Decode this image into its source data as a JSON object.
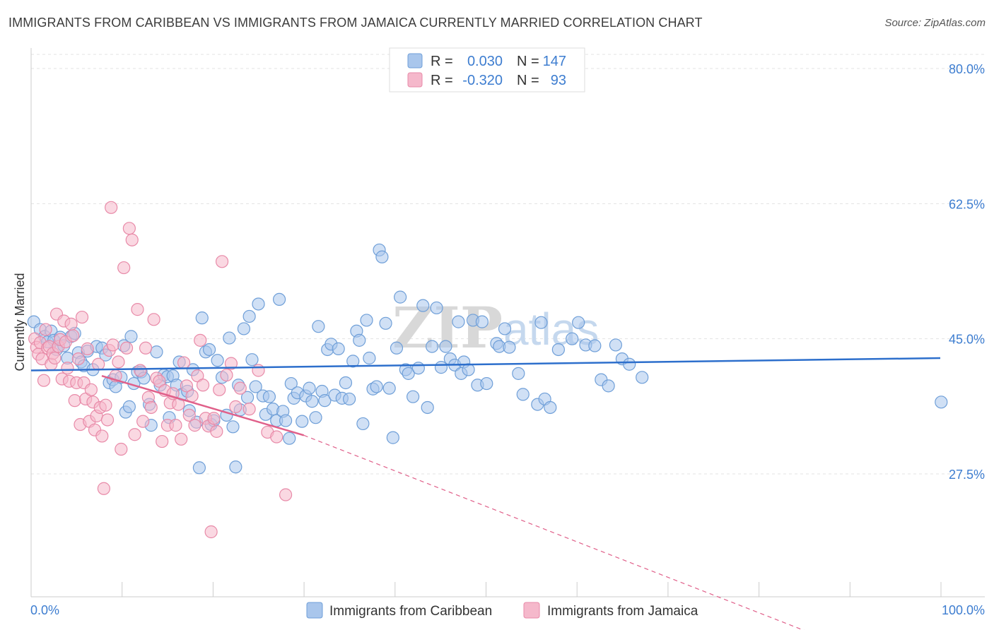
{
  "title": "IMMIGRANTS FROM CARIBBEAN VS IMMIGRANTS FROM JAMAICA CURRENTLY MARRIED CORRELATION CHART",
  "source": "Source: ZipAtlas.com",
  "watermark": {
    "zip": "ZIP",
    "atlas": "atlas"
  },
  "legend_box": {
    "rows": [
      {
        "r_label": "R =",
        "r_value": "0.030",
        "n_label": "N =",
        "n_value": "147"
      },
      {
        "r_label": "R =",
        "r_value": "-0.320",
        "n_label": "N =",
        "n_value": "93"
      }
    ]
  },
  "bottom_legend": [
    "Immigrants from Caribbean",
    "Immigrants from Jamaica"
  ],
  "chart_data": {
    "type": "scatter",
    "title": "IMMIGRANTS FROM CARIBBEAN VS IMMIGRANTS FROM JAMAICA CURRENTLY MARRIED CORRELATION CHART",
    "xlabel": "",
    "ylabel": "Currently Married",
    "xlim": [
      0,
      100
    ],
    "ylim": [
      10,
      82
    ],
    "x_tick_labels": [
      "0.0%",
      "100.0%"
    ],
    "y_ticks": [
      27.5,
      45.0,
      62.5,
      80.0
    ],
    "y_tick_labels": [
      "27.5%",
      "45.0%",
      "62.5%",
      "80.0%"
    ],
    "grid": true,
    "legend_position": "top-center",
    "colors": {
      "caribbean_fill": "#a9c6ec",
      "caribbean_stroke": "#6f9fd8",
      "caribbean_line": "#2d6fcc",
      "jamaica_fill": "#f5b8cb",
      "jamaica_stroke": "#e88aa8",
      "jamaica_line": "#e0608a",
      "tick_label": "#3d7dd0"
    },
    "series": [
      {
        "name": "Immigrants from Caribbean",
        "R": 0.03,
        "N": 147,
        "trend": {
          "x": [
            0,
            100
          ],
          "y": [
            40.9,
            42.5
          ]
        },
        "points": [
          [
            0.3,
            47.2
          ],
          [
            1.0,
            46.2
          ],
          [
            1.5,
            45.3
          ],
          [
            1.8,
            44.6
          ],
          [
            2.2,
            46.0
          ],
          [
            2.5,
            44.8
          ],
          [
            2.8,
            43.6
          ],
          [
            3.2,
            45.2
          ],
          [
            3.6,
            44.1
          ],
          [
            4.0,
            42.5
          ],
          [
            4.4,
            45.3
          ],
          [
            4.8,
            45.7
          ],
          [
            5.2,
            43.2
          ],
          [
            5.5,
            42.0
          ],
          [
            5.8,
            41.5
          ],
          [
            6.2,
            43.4
          ],
          [
            6.8,
            41.0
          ],
          [
            7.2,
            44.0
          ],
          [
            7.8,
            43.8
          ],
          [
            8.2,
            42.9
          ],
          [
            8.6,
            39.3
          ],
          [
            9.0,
            39.7
          ],
          [
            9.3,
            38.8
          ],
          [
            9.9,
            40.0
          ],
          [
            10.2,
            44.1
          ],
          [
            10.4,
            35.5
          ],
          [
            10.8,
            36.2
          ],
          [
            11.0,
            45.3
          ],
          [
            11.3,
            39.2
          ],
          [
            11.7,
            40.7
          ],
          [
            12.1,
            40.7
          ],
          [
            12.4,
            39.9
          ],
          [
            13.0,
            36.5
          ],
          [
            13.2,
            33.8
          ],
          [
            13.8,
            43.3
          ],
          [
            14.2,
            39.0
          ],
          [
            14.6,
            40.3
          ],
          [
            15.0,
            40.1
          ],
          [
            15.2,
            34.8
          ],
          [
            15.6,
            40.2
          ],
          [
            16.0,
            39.0
          ],
          [
            16.3,
            42.0
          ],
          [
            16.6,
            37.8
          ],
          [
            17.2,
            38.2
          ],
          [
            17.4,
            35.7
          ],
          [
            17.8,
            41.0
          ],
          [
            18.2,
            34.2
          ],
          [
            18.5,
            28.3
          ],
          [
            18.8,
            47.7
          ],
          [
            19.2,
            43.3
          ],
          [
            19.6,
            43.6
          ],
          [
            19.8,
            33.9
          ],
          [
            20.1,
            34.4
          ],
          [
            20.5,
            42.2
          ],
          [
            21.0,
            40.0
          ],
          [
            21.5,
            35.1
          ],
          [
            21.8,
            45.1
          ],
          [
            22.2,
            33.6
          ],
          [
            22.5,
            28.4
          ],
          [
            22.8,
            39.0
          ],
          [
            23.0,
            35.8
          ],
          [
            23.4,
            46.3
          ],
          [
            23.8,
            37.4
          ],
          [
            24.0,
            47.9
          ],
          [
            24.3,
            42.3
          ],
          [
            24.7,
            38.8
          ],
          [
            25.0,
            49.5
          ],
          [
            25.5,
            37.6
          ],
          [
            25.8,
            35.2
          ],
          [
            26.2,
            37.5
          ],
          [
            26.6,
            35.9
          ],
          [
            27.0,
            34.4
          ],
          [
            27.3,
            50.1
          ],
          [
            27.7,
            35.6
          ],
          [
            28.0,
            34.4
          ],
          [
            28.4,
            32.1
          ],
          [
            28.6,
            39.2
          ],
          [
            28.9,
            37.3
          ],
          [
            29.3,
            38.0
          ],
          [
            29.8,
            34.3
          ],
          [
            30.2,
            37.6
          ],
          [
            30.6,
            38.6
          ],
          [
            30.9,
            36.9
          ],
          [
            31.3,
            34.8
          ],
          [
            31.6,
            46.6
          ],
          [
            32.0,
            38.2
          ],
          [
            32.3,
            37.0
          ],
          [
            32.6,
            43.6
          ],
          [
            33.0,
            44.3
          ],
          [
            33.4,
            37.7
          ],
          [
            33.8,
            43.7
          ],
          [
            34.2,
            37.3
          ],
          [
            34.6,
            39.3
          ],
          [
            35.0,
            37.2
          ],
          [
            35.4,
            42.1
          ],
          [
            35.8,
            46.0
          ],
          [
            36.1,
            44.8
          ],
          [
            36.5,
            34.0
          ],
          [
            36.9,
            47.4
          ],
          [
            37.2,
            42.5
          ],
          [
            37.6,
            38.5
          ],
          [
            38.0,
            38.8
          ],
          [
            38.3,
            56.5
          ],
          [
            38.6,
            55.6
          ],
          [
            39.0,
            47.0
          ],
          [
            39.4,
            38.6
          ],
          [
            39.8,
            32.2
          ],
          [
            40.2,
            43.8
          ],
          [
            40.6,
            50.4
          ],
          [
            41.2,
            41.0
          ],
          [
            41.5,
            40.5
          ],
          [
            42.0,
            37.5
          ],
          [
            42.6,
            41.2
          ],
          [
            43.1,
            49.3
          ],
          [
            43.6,
            36.1
          ],
          [
            44.1,
            44.0
          ],
          [
            44.6,
            49.0
          ],
          [
            45.1,
            41.3
          ],
          [
            45.6,
            44.0
          ],
          [
            46.1,
            42.4
          ],
          [
            46.6,
            41.6
          ],
          [
            47.0,
            47.2
          ],
          [
            47.3,
            40.5
          ],
          [
            47.6,
            42.0
          ],
          [
            48.1,
            41.0
          ],
          [
            48.6,
            47.4
          ],
          [
            49.1,
            39.0
          ],
          [
            49.6,
            47.2
          ],
          [
            50.1,
            39.2
          ],
          [
            51.2,
            44.4
          ],
          [
            51.5,
            44.0
          ],
          [
            52.1,
            46.3
          ],
          [
            52.6,
            43.9
          ],
          [
            53.6,
            40.5
          ],
          [
            54.1,
            37.8
          ],
          [
            55.7,
            36.5
          ],
          [
            56.1,
            47.1
          ],
          [
            56.5,
            37.2
          ],
          [
            57.1,
            36.1
          ],
          [
            58.0,
            43.6
          ],
          [
            59.5,
            45.0
          ],
          [
            60.2,
            47.1
          ],
          [
            61.0,
            44.2
          ],
          [
            62.0,
            44.1
          ],
          [
            62.7,
            39.7
          ],
          [
            63.5,
            38.9
          ],
          [
            64.3,
            44.2
          ],
          [
            65.0,
            42.4
          ],
          [
            65.8,
            41.7
          ],
          [
            67.2,
            40.0
          ],
          [
            100.1,
            36.8
          ]
        ]
      },
      {
        "name": "Immigrants from Jamaica",
        "R": -0.32,
        "N": 93,
        "trend": {
          "x": [
            0,
            30
          ],
          "y": [
            43.7,
            32.5
          ],
          "extended_to": [
            100,
            5.0
          ]
        },
        "points": [
          [
            0.4,
            45.0
          ],
          [
            0.6,
            43.9
          ],
          [
            0.8,
            43.0
          ],
          [
            1.0,
            44.5
          ],
          [
            1.2,
            42.4
          ],
          [
            1.4,
            39.6
          ],
          [
            1.6,
            46.2
          ],
          [
            1.8,
            43.8
          ],
          [
            2.0,
            44.0
          ],
          [
            2.2,
            41.7
          ],
          [
            2.4,
            43.1
          ],
          [
            2.6,
            42.5
          ],
          [
            2.8,
            48.2
          ],
          [
            3.0,
            44.0
          ],
          [
            3.2,
            44.9
          ],
          [
            3.4,
            39.8
          ],
          [
            3.6,
            47.3
          ],
          [
            3.8,
            44.6
          ],
          [
            4.0,
            41.2
          ],
          [
            4.2,
            39.5
          ],
          [
            4.4,
            46.9
          ],
          [
            4.6,
            45.4
          ],
          [
            4.8,
            37.0
          ],
          [
            5.0,
            39.3
          ],
          [
            5.2,
            42.4
          ],
          [
            5.4,
            33.9
          ],
          [
            5.6,
            47.8
          ],
          [
            5.8,
            39.3
          ],
          [
            6.0,
            37.2
          ],
          [
            6.2,
            43.7
          ],
          [
            6.4,
            34.3
          ],
          [
            6.6,
            38.4
          ],
          [
            6.8,
            36.8
          ],
          [
            7.0,
            33.2
          ],
          [
            7.2,
            35.0
          ],
          [
            7.4,
            41.7
          ],
          [
            7.6,
            36.1
          ],
          [
            7.8,
            32.4
          ],
          [
            8.0,
            25.6
          ],
          [
            8.2,
            36.4
          ],
          [
            8.4,
            34.5
          ],
          [
            8.6,
            43.5
          ],
          [
            8.8,
            62.0
          ],
          [
            9.0,
            44.2
          ],
          [
            9.3,
            40.2
          ],
          [
            9.6,
            42.0
          ],
          [
            9.9,
            30.7
          ],
          [
            10.2,
            54.2
          ],
          [
            10.5,
            43.8
          ],
          [
            10.8,
            59.3
          ],
          [
            11.1,
            57.8
          ],
          [
            11.4,
            32.6
          ],
          [
            11.7,
            48.8
          ],
          [
            12.0,
            40.9
          ],
          [
            12.3,
            34.3
          ],
          [
            12.6,
            43.8
          ],
          [
            12.9,
            37.4
          ],
          [
            13.2,
            36.1
          ],
          [
            13.5,
            47.5
          ],
          [
            13.8,
            39.9
          ],
          [
            14.1,
            39.5
          ],
          [
            14.4,
            31.7
          ],
          [
            14.7,
            38.3
          ],
          [
            15.0,
            33.8
          ],
          [
            15.3,
            36.7
          ],
          [
            15.6,
            37.9
          ],
          [
            15.9,
            33.8
          ],
          [
            16.2,
            36.5
          ],
          [
            16.5,
            32.0
          ],
          [
            16.8,
            41.9
          ],
          [
            17.1,
            38.9
          ],
          [
            17.4,
            35.1
          ],
          [
            17.7,
            37.6
          ],
          [
            18.0,
            33.8
          ],
          [
            18.3,
            40.2
          ],
          [
            18.6,
            44.8
          ],
          [
            18.9,
            39.0
          ],
          [
            19.2,
            34.7
          ],
          [
            19.5,
            33.7
          ],
          [
            19.8,
            20.0
          ],
          [
            20.1,
            34.7
          ],
          [
            20.4,
            33.0
          ],
          [
            20.7,
            38.4
          ],
          [
            21.0,
            55.0
          ],
          [
            21.5,
            40.3
          ],
          [
            22.0,
            41.8
          ],
          [
            22.5,
            36.2
          ],
          [
            23.0,
            38.6
          ],
          [
            24.0,
            35.9
          ],
          [
            25.0,
            40.9
          ],
          [
            26.0,
            32.9
          ],
          [
            27.0,
            32.3
          ],
          [
            28.0,
            24.8
          ]
        ]
      }
    ]
  }
}
